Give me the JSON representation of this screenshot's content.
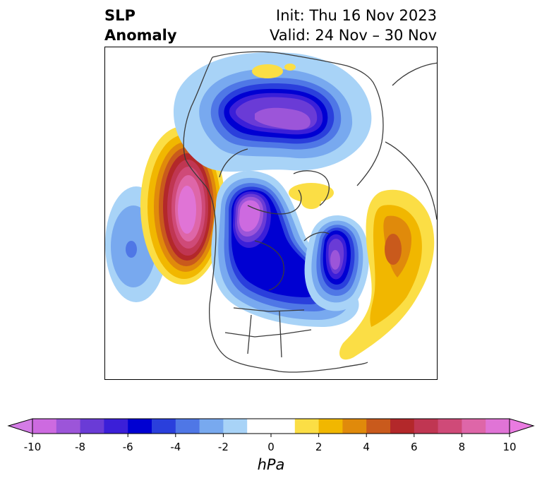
{
  "title": {
    "left_line1": "SLP",
    "left_line2": "Anomaly",
    "right_line1": "Init: Thu 16 Nov 2023",
    "right_line2": "Valid: 24 Nov – 30 Nov"
  },
  "map": {
    "projection": "north-polar-stereographic",
    "variable": "SLP",
    "features": {
      "north_pacific_high": {
        "region": "Gulf of Alaska / NE Pacific",
        "peak_hpa": 10
      },
      "central_pacific_low": {
        "region": "central North Pacific",
        "peak_hpa": -5
      },
      "canada_low": {
        "region": "western/central Canada to Hudson Bay",
        "peak_hpa": -10
      },
      "labrador_low": {
        "region": "Labrador Sea / Davis Strait",
        "peak_hpa": -8
      },
      "arctic_low": {
        "region": "Kara Sea / central Arctic",
        "peak_hpa": -9
      },
      "north_atlantic_high": {
        "region": "North Atlantic near Azores",
        "peak_hpa": 5
      },
      "greenland_high": {
        "region": "Greenland",
        "peak_hpa": 1
      },
      "arctic_high": {
        "region": "Barents Sea coast",
        "peak_hpa": 1
      }
    }
  },
  "colorbar": {
    "unit": "hPa",
    "ticks": [
      "-10",
      "-8",
      "-6",
      "-4",
      "-2",
      "0",
      "2",
      "4",
      "6",
      "8",
      "10"
    ],
    "extend": "both",
    "levels": [
      -10,
      -9,
      -8,
      -7,
      -6,
      -5,
      -4,
      -3,
      -2,
      -1,
      1,
      2,
      3,
      4,
      5,
      6,
      7,
      8,
      9,
      10
    ],
    "colors": [
      "#cd6ae0",
      "#9c55d9",
      "#6a3bd6",
      "#3b1fd8",
      "#0000d2",
      "#2a3fdc",
      "#4f77e6",
      "#78a9ef",
      "#a8d3f7",
      "#ffffff",
      "#fbde45",
      "#f1b700",
      "#e08a0b",
      "#c95a1c",
      "#b3282a",
      "#c03652",
      "#cf4a78",
      "#de66a8",
      "#e074d6"
    ],
    "under_color": "#d47ce6",
    "over_color": "#e97be0"
  }
}
